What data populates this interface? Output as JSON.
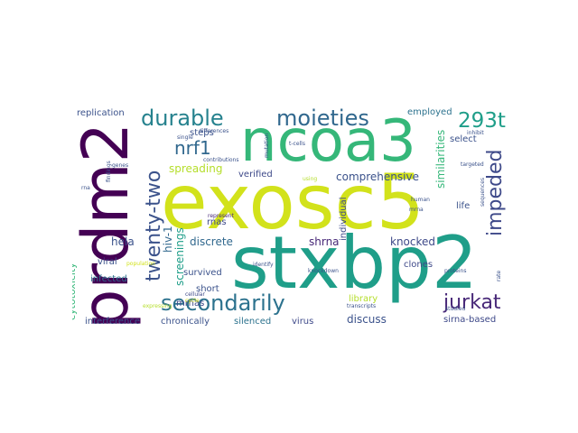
{
  "words": [
    {
      "text": "exosc5",
      "color": "#d2e21b"
    },
    {
      "text": "stxbp2",
      "color": "#1f9e89"
    },
    {
      "text": "prdm2",
      "color": "#440154"
    },
    {
      "text": "ncoa3",
      "color": "#35b779"
    },
    {
      "text": "moieties",
      "color": "#31688e"
    },
    {
      "text": "durable",
      "color": "#26828e"
    },
    {
      "text": "secondarily",
      "color": "#2c728e"
    },
    {
      "text": "twenty-two",
      "color": "#3b528b"
    },
    {
      "text": "293t",
      "color": "#1f9e89"
    },
    {
      "text": "impeded",
      "color": "#3e4989"
    },
    {
      "text": "jurkat",
      "color": "#482878"
    },
    {
      "text": "nrf1",
      "color": "#31688e"
    },
    {
      "text": "spreading",
      "color": "#b5de2b"
    },
    {
      "text": "comprehensive",
      "color": "#3b528b"
    },
    {
      "text": "similarities",
      "color": "#35b779"
    },
    {
      "text": "knocked",
      "color": "#3e4989"
    },
    {
      "text": "shrna",
      "color": "#482878"
    },
    {
      "text": "discrete",
      "color": "#31688e"
    },
    {
      "text": "hela",
      "color": "#3b528b"
    },
    {
      "text": "hiv-1",
      "color": "#31688e"
    },
    {
      "text": "screenings",
      "color": "#1f9e89"
    },
    {
      "text": "cytotoxicity",
      "color": "#35b779"
    },
    {
      "text": "interference",
      "color": "#3b528b"
    },
    {
      "text": "chronically",
      "color": "#3b528b"
    },
    {
      "text": "silenced",
      "color": "#2c728e"
    },
    {
      "text": "virus",
      "color": "#3e4989"
    },
    {
      "text": "discuss",
      "color": "#3b528b"
    },
    {
      "text": "sirna-based",
      "color": "#3e4989"
    },
    {
      "text": "library",
      "color": "#b5de2b"
    },
    {
      "text": "clones",
      "color": "#3e4989"
    },
    {
      "text": "verified",
      "color": "#3e4989"
    },
    {
      "text": "survived",
      "color": "#3b528b"
    },
    {
      "text": "short",
      "color": "#3b528b"
    },
    {
      "text": "rnas",
      "color": "#3e4989"
    },
    {
      "text": "mrnas",
      "color": "#3e4989"
    },
    {
      "text": "infected",
      "color": "#2c728e"
    },
    {
      "text": "viral",
      "color": "#3b528b"
    },
    {
      "text": "replication",
      "color": "#3b528b"
    },
    {
      "text": "steps",
      "color": "#3b528b"
    },
    {
      "text": "employed",
      "color": "#2c728e"
    },
    {
      "text": "select",
      "color": "#3b528b"
    },
    {
      "text": "life",
      "color": "#3b528b"
    },
    {
      "text": "individual",
      "color": "#3e4989"
    },
    {
      "text": "investigators",
      "color": "#3b528b"
    },
    {
      "text": "interfering",
      "color": "#31688e"
    },
    {
      "text": "sequences",
      "color": "#3b528b"
    },
    {
      "text": "t-cells",
      "color": "#3b528b"
    },
    {
      "text": "cellular",
      "color": "#3e4989"
    },
    {
      "text": "identify",
      "color": "#3b528b"
    },
    {
      "text": "knockdown",
      "color": "#3b528b"
    },
    {
      "text": "proteins",
      "color": "#3b528b"
    },
    {
      "text": "studied",
      "color": "#3b528b"
    },
    {
      "text": "transcripts",
      "color": "#3b528b"
    },
    {
      "text": "represent",
      "color": "#482878"
    },
    {
      "text": "differences",
      "color": "#3b528b"
    },
    {
      "text": "single",
      "color": "#3b528b"
    },
    {
      "text": "contributions",
      "color": "#3b528b"
    },
    {
      "text": "human",
      "color": "#3b528b"
    },
    {
      "text": "targeted",
      "color": "#3b528b"
    },
    {
      "text": "inhibit",
      "color": "#3b528b"
    },
    {
      "text": "mutation",
      "color": "#3b528b"
    },
    {
      "text": "genes",
      "color": "#3b528b"
    },
    {
      "text": "findings",
      "color": "#3b528b"
    },
    {
      "text": "rna",
      "color": "#3b528b"
    },
    {
      "text": "mrna",
      "color": "#3b528b"
    },
    {
      "text": "rate",
      "color": "#3b528b"
    },
    {
      "text": "population",
      "color": "#d2e21b"
    },
    {
      "text": "expressing",
      "color": "#b5de2b"
    },
    {
      "text": "cycle",
      "color": "#d2e21b"
    },
    {
      "text": "using",
      "color": "#b5de2b"
    }
  ]
}
